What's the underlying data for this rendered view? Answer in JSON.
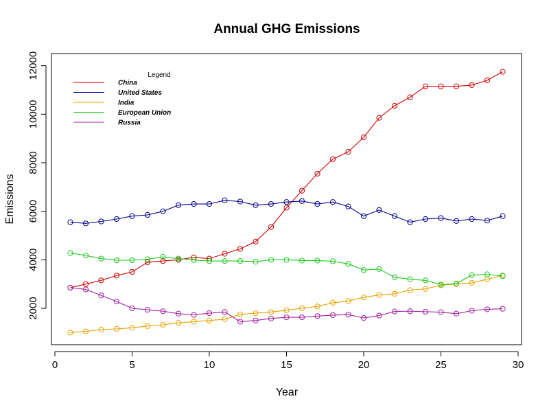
{
  "chart_data": {
    "type": "line",
    "title": "Annual GHG Emissions",
    "xlabel": "Year",
    "ylabel": "Emissions",
    "xlim": [
      0,
      30
    ],
    "ylim": [
      500,
      12500
    ],
    "x_ticks": [
      0,
      5,
      10,
      15,
      20,
      25,
      30
    ],
    "y_ticks": [
      2000,
      4000,
      6000,
      8000,
      10000,
      12000
    ],
    "grid": false,
    "legend": {
      "title": "Legend",
      "position": "top-left"
    },
    "x": [
      1,
      2,
      3,
      4,
      5,
      6,
      7,
      8,
      9,
      10,
      11,
      12,
      13,
      14,
      15,
      16,
      17,
      18,
      19,
      20,
      21,
      22,
      23,
      24,
      25,
      26,
      27,
      28,
      29
    ],
    "series": [
      {
        "name": "China",
        "color": "#CD0000",
        "values": [
          2850,
          3000,
          3150,
          3350,
          3500,
          3900,
          3950,
          4000,
          4100,
          4050,
          4250,
          4450,
          4750,
          5350,
          6150,
          6850,
          7550,
          8150,
          8450,
          9050,
          9850,
          10350,
          10700,
          11150,
          11150,
          11150,
          11200,
          11400,
          11750
        ]
      },
      {
        "name": "United States",
        "color": "#00008B",
        "values": [
          5550,
          5500,
          5580,
          5680,
          5800,
          5850,
          6000,
          6250,
          6300,
          6300,
          6450,
          6400,
          6250,
          6300,
          6380,
          6420,
          6300,
          6380,
          6200,
          5800,
          6050,
          5800,
          5550,
          5680,
          5720,
          5600,
          5680,
          5620,
          5800
        ]
      },
      {
        "name": "India",
        "color": "#E8A100",
        "values": [
          1000,
          1050,
          1120,
          1150,
          1200,
          1270,
          1320,
          1400,
          1450,
          1500,
          1550,
          1750,
          1800,
          1850,
          1920,
          2000,
          2080,
          2230,
          2300,
          2450,
          2550,
          2600,
          2750,
          2800,
          2950,
          3000,
          3050,
          3200,
          3350
        ]
      },
      {
        "name": "European Union",
        "color": "#1EC81E",
        "values": [
          4280,
          4180,
          4050,
          3980,
          3980,
          4020,
          4120,
          4050,
          3990,
          3950,
          3950,
          3950,
          3920,
          4000,
          4000,
          3970,
          3970,
          3940,
          3830,
          3580,
          3620,
          3280,
          3200,
          3150,
          2980,
          3020,
          3370,
          3400,
          3330
        ]
      },
      {
        "name": "Russia",
        "color": "#A020A0",
        "values": [
          2850,
          2780,
          2530,
          2280,
          2000,
          1940,
          1880,
          1780,
          1730,
          1800,
          1850,
          1450,
          1500,
          1580,
          1630,
          1630,
          1680,
          1720,
          1740,
          1600,
          1700,
          1870,
          1880,
          1860,
          1840,
          1780,
          1900,
          1960,
          1980
        ]
      }
    ]
  }
}
